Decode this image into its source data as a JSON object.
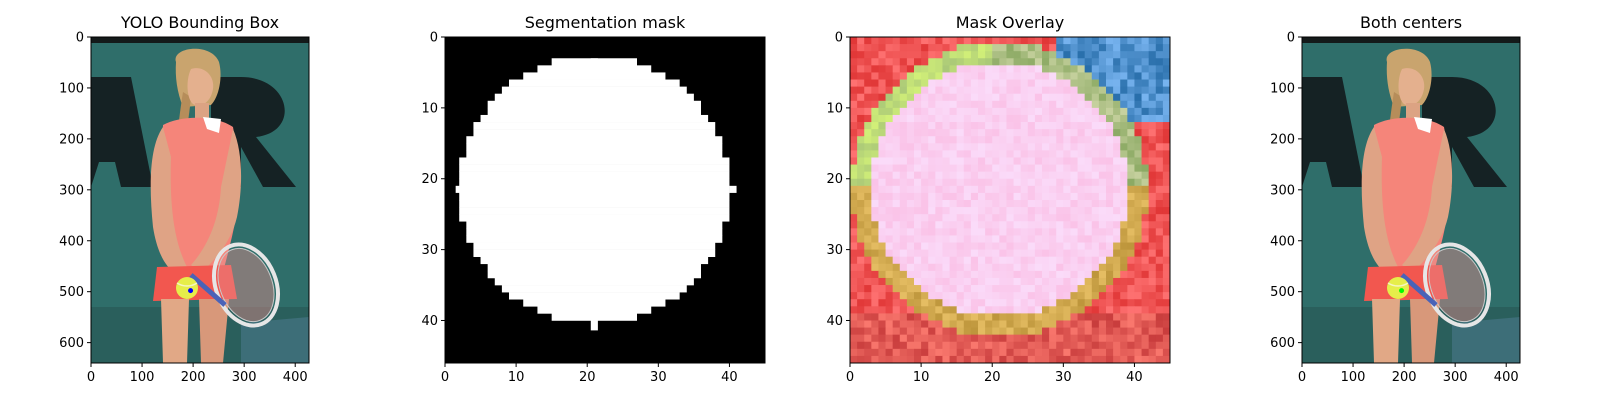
{
  "figure": {
    "background": "#ffffff"
  },
  "chart_data": [
    {
      "type": "image",
      "title": "YOLO Bounding Box",
      "xlim": [
        0,
        427
      ],
      "ylim": [
        640,
        0
      ],
      "xticks": [
        0,
        100,
        200,
        300,
        400
      ],
      "yticks": [
        0,
        100,
        200,
        300,
        400,
        500,
        600
      ],
      "marker": {
        "x": 195,
        "y": 498,
        "color": "#0000ff"
      },
      "image_subject": "tennis-player"
    },
    {
      "type": "image",
      "title": "Segmentation mask",
      "xlim": [
        0,
        45
      ],
      "ylim": [
        46,
        0
      ],
      "xticks": [
        0,
        10,
        20,
        30,
        40
      ],
      "yticks": [
        0,
        10,
        20,
        30,
        40
      ],
      "circle": {
        "cx": 21,
        "cy": 21.5,
        "r": 19
      },
      "image_subject": "binary-mask"
    },
    {
      "type": "image",
      "title": "Mask Overlay",
      "xlim": [
        0,
        45
      ],
      "ylim": [
        46,
        0
      ],
      "xticks": [
        0,
        10,
        20,
        30,
        40
      ],
      "yticks": [
        0,
        10,
        20,
        30,
        40
      ],
      "circle": {
        "cx": 21,
        "cy": 21.5,
        "r": 19
      },
      "image_subject": "pixelated-ball-overlay"
    },
    {
      "type": "image",
      "title": "Both centers",
      "xlim": [
        0,
        427
      ],
      "ylim": [
        640,
        0
      ],
      "xticks": [
        0,
        100,
        200,
        300,
        400
      ],
      "yticks": [
        0,
        100,
        200,
        300,
        400,
        500,
        600
      ],
      "marker": {
        "x": 195,
        "y": 498,
        "color": "#00ff00"
      },
      "image_subject": "tennis-player"
    }
  ]
}
